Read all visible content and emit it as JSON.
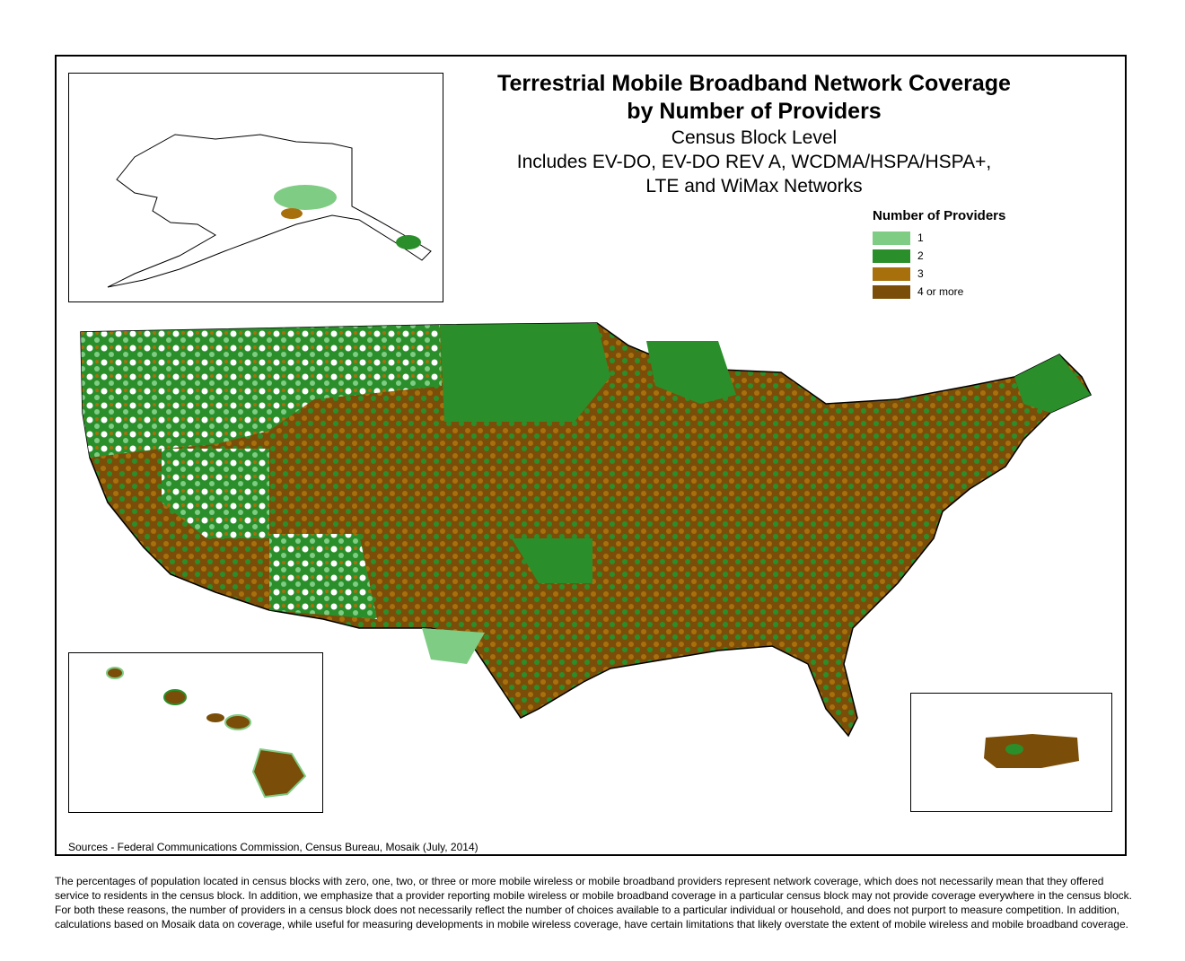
{
  "map": {
    "title_line1": "Terrestrial Mobile Broadband Network Coverage",
    "title_line2": "by Number of Providers",
    "subtitle_line1": "Census Block Level",
    "subtitle_line2": "Includes EV-DO, EV-DO REV A, WCDMA/HSPA/HSPA+,",
    "subtitle_line3": "LTE and WiMax Networks"
  },
  "legend": {
    "title": "Number of Providers",
    "items": [
      {
        "label": "1",
        "color": "#7fcc84"
      },
      {
        "label": "2",
        "color": "#2a8f2a"
      },
      {
        "label": "3",
        "color": "#a8700c"
      },
      {
        "label": "4 or more",
        "color": "#7a4e08"
      }
    ]
  },
  "sources": "Sources - Federal Communications Commission, Census Bureau, Mosaik (July, 2014)",
  "disclaimer": "The percentages of population located in census blocks with zero, one, two, or three or more mobile wireless or mobile broadband providers represent network coverage, which does not necessarily mean that they offered service to residents in the census block. In addition, we emphasize that a provider reporting mobile wireless or mobile broadband coverage in a particular census block may not provide coverage everywhere in the census block. For both these reasons, the number of providers in a census block does not necessarily reflect the number of choices available to a particular individual or household, and does not purport to measure competition. In addition, calculations based on Mosaik data on coverage, while useful for measuring developments in mobile wireless coverage, have certain limitations that likely overstate the extent of mobile wireless and mobile broadband coverage."
}
